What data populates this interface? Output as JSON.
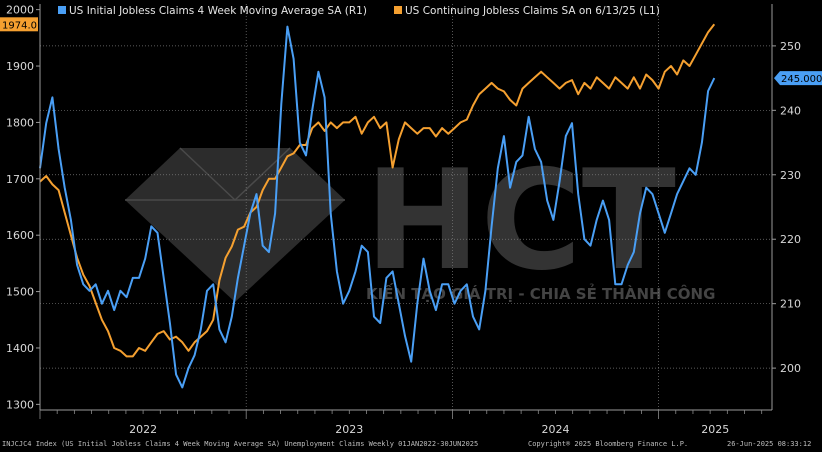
{
  "chart_data": {
    "type": "line",
    "legend": [
      {
        "label": "US Initial Jobless Claims 4 Week Moving Average SA  (R1)",
        "color": "#4a9ff5"
      },
      {
        "label": "US Continuing Jobless Claims SA  on 6/13/25 (L1)",
        "color": "#f5a030"
      }
    ],
    "left_axis": {
      "ticks": [
        "1300",
        "1400",
        "1500",
        "1600",
        "1700",
        "1800",
        "1900",
        "2000"
      ],
      "range": [
        1290,
        2010
      ]
    },
    "right_axis": {
      "ticks": [
        "200",
        "210",
        "220",
        "230",
        "240",
        "250"
      ],
      "range": [
        193.5,
        256.5
      ]
    },
    "x_labels": [
      "2022",
      "2023",
      "2024",
      "2025"
    ],
    "x_range": [
      2022.0,
      2025.55
    ],
    "last_value_left": "1974.0",
    "last_value_right": "245.000",
    "watermark": {
      "brand": "HCT",
      "tagline": "KIẾN TẠO GIÁ TRỊ - CHIA SẺ THÀNH CÔNG"
    },
    "series": [
      {
        "name": "US Initial Jobless Claims 4 Week Moving Average SA",
        "axis": "right",
        "color": "#4a9ff5",
        "points": [
          [
            2022.0,
            231
          ],
          [
            2022.03,
            238
          ],
          [
            2022.06,
            242
          ],
          [
            2022.09,
            234
          ],
          [
            2022.12,
            228
          ],
          [
            2022.15,
            223
          ],
          [
            2022.18,
            216
          ],
          [
            2022.21,
            213
          ],
          [
            2022.24,
            212
          ],
          [
            2022.27,
            213
          ],
          [
            2022.3,
            210
          ],
          [
            2022.33,
            212
          ],
          [
            2022.36,
            209
          ],
          [
            2022.39,
            212
          ],
          [
            2022.42,
            211
          ],
          [
            2022.45,
            214
          ],
          [
            2022.48,
            214
          ],
          [
            2022.51,
            217
          ],
          [
            2022.54,
            222
          ],
          [
            2022.57,
            221
          ],
          [
            2022.6,
            214
          ],
          [
            2022.63,
            207
          ],
          [
            2022.66,
            199
          ],
          [
            2022.69,
            197
          ],
          [
            2022.72,
            200
          ],
          [
            2022.75,
            202
          ],
          [
            2022.78,
            206
          ],
          [
            2022.81,
            212
          ],
          [
            2022.84,
            213
          ],
          [
            2022.87,
            206
          ],
          [
            2022.9,
            204
          ],
          [
            2022.93,
            208
          ],
          [
            2022.96,
            214
          ],
          [
            2022.99,
            219
          ],
          [
            2023.02,
            224
          ],
          [
            2023.05,
            227
          ],
          [
            2023.08,
            219
          ],
          [
            2023.11,
            218
          ],
          [
            2023.14,
            224
          ],
          [
            2023.17,
            241
          ],
          [
            2023.2,
            253
          ],
          [
            2023.23,
            248
          ],
          [
            2023.26,
            235
          ],
          [
            2023.29,
            233
          ],
          [
            2023.32,
            240
          ],
          [
            2023.35,
            246
          ],
          [
            2023.38,
            242
          ],
          [
            2023.41,
            224
          ],
          [
            2023.44,
            215
          ],
          [
            2023.47,
            210
          ],
          [
            2023.5,
            212
          ],
          [
            2023.53,
            215
          ],
          [
            2023.56,
            219
          ],
          [
            2023.59,
            218
          ],
          [
            2023.62,
            208
          ],
          [
            2023.65,
            207
          ],
          [
            2023.68,
            214
          ],
          [
            2023.71,
            215
          ],
          [
            2023.74,
            210
          ],
          [
            2023.77,
            205
          ],
          [
            2023.8,
            201
          ],
          [
            2023.83,
            210
          ],
          [
            2023.86,
            217
          ],
          [
            2023.89,
            212
          ],
          [
            2023.92,
            209
          ],
          [
            2023.95,
            213
          ],
          [
            2023.98,
            213
          ],
          [
            2024.01,
            210
          ],
          [
            2024.04,
            212
          ],
          [
            2024.07,
            213
          ],
          [
            2024.1,
            208
          ],
          [
            2024.13,
            206
          ],
          [
            2024.16,
            212
          ],
          [
            2024.19,
            222
          ],
          [
            2024.22,
            231
          ],
          [
            2024.25,
            236
          ],
          [
            2024.28,
            228
          ],
          [
            2024.31,
            232
          ],
          [
            2024.34,
            233
          ],
          [
            2024.37,
            239
          ],
          [
            2024.4,
            234
          ],
          [
            2024.43,
            232
          ],
          [
            2024.46,
            226
          ],
          [
            2024.49,
            223
          ],
          [
            2024.52,
            229
          ],
          [
            2024.55,
            236
          ],
          [
            2024.58,
            238
          ],
          [
            2024.61,
            227
          ],
          [
            2024.64,
            220
          ],
          [
            2024.67,
            219
          ],
          [
            2024.7,
            223
          ],
          [
            2024.73,
            226
          ],
          [
            2024.76,
            223
          ],
          [
            2024.79,
            213
          ],
          [
            2024.82,
            213
          ],
          [
            2024.85,
            216
          ],
          [
            2024.88,
            218
          ],
          [
            2024.91,
            224
          ],
          [
            2024.94,
            228
          ],
          [
            2024.97,
            227
          ],
          [
            2025.0,
            224
          ],
          [
            2025.03,
            221
          ],
          [
            2025.06,
            224
          ],
          [
            2025.09,
            227
          ],
          [
            2025.12,
            229
          ],
          [
            2025.15,
            231
          ],
          [
            2025.18,
            230
          ],
          [
            2025.21,
            235
          ],
          [
            2025.24,
            243
          ],
          [
            2025.27,
            245
          ]
        ]
      },
      {
        "name": "US Continuing Jobless Claims SA",
        "axis": "left",
        "color": "#f5a030",
        "points": [
          [
            2022.0,
            1695
          ],
          [
            2022.03,
            1705
          ],
          [
            2022.06,
            1690
          ],
          [
            2022.09,
            1680
          ],
          [
            2022.12,
            1640
          ],
          [
            2022.15,
            1600
          ],
          [
            2022.18,
            1560
          ],
          [
            2022.21,
            1530
          ],
          [
            2022.24,
            1510
          ],
          [
            2022.27,
            1480
          ],
          [
            2022.3,
            1450
          ],
          [
            2022.33,
            1430
          ],
          [
            2022.36,
            1400
          ],
          [
            2022.39,
            1395
          ],
          [
            2022.42,
            1385
          ],
          [
            2022.45,
            1385
          ],
          [
            2022.48,
            1400
          ],
          [
            2022.51,
            1395
          ],
          [
            2022.54,
            1410
          ],
          [
            2022.57,
            1425
          ],
          [
            2022.6,
            1430
          ],
          [
            2022.63,
            1415
          ],
          [
            2022.66,
            1420
          ],
          [
            2022.69,
            1410
          ],
          [
            2022.72,
            1395
          ],
          [
            2022.75,
            1410
          ],
          [
            2022.78,
            1420
          ],
          [
            2022.81,
            1430
          ],
          [
            2022.84,
            1450
          ],
          [
            2022.87,
            1520
          ],
          [
            2022.9,
            1560
          ],
          [
            2022.93,
            1580
          ],
          [
            2022.96,
            1610
          ],
          [
            2022.99,
            1615
          ],
          [
            2023.02,
            1640
          ],
          [
            2023.05,
            1650
          ],
          [
            2023.08,
            1680
          ],
          [
            2023.11,
            1700
          ],
          [
            2023.14,
            1700
          ],
          [
            2023.17,
            1720
          ],
          [
            2023.2,
            1740
          ],
          [
            2023.23,
            1745
          ],
          [
            2023.26,
            1760
          ],
          [
            2023.29,
            1760
          ],
          [
            2023.32,
            1790
          ],
          [
            2023.35,
            1800
          ],
          [
            2023.38,
            1785
          ],
          [
            2023.41,
            1800
          ],
          [
            2023.44,
            1790
          ],
          [
            2023.47,
            1800
          ],
          [
            2023.5,
            1800
          ],
          [
            2023.53,
            1810
          ],
          [
            2023.56,
            1780
          ],
          [
            2023.59,
            1800
          ],
          [
            2023.62,
            1810
          ],
          [
            2023.65,
            1790
          ],
          [
            2023.68,
            1800
          ],
          [
            2023.71,
            1720
          ],
          [
            2023.74,
            1770
          ],
          [
            2023.77,
            1800
          ],
          [
            2023.8,
            1790
          ],
          [
            2023.83,
            1780
          ],
          [
            2023.86,
            1790
          ],
          [
            2023.89,
            1790
          ],
          [
            2023.92,
            1775
          ],
          [
            2023.95,
            1790
          ],
          [
            2023.98,
            1780
          ],
          [
            2024.01,
            1790
          ],
          [
            2024.04,
            1800
          ],
          [
            2024.07,
            1805
          ],
          [
            2024.1,
            1830
          ],
          [
            2024.13,
            1850
          ],
          [
            2024.16,
            1860
          ],
          [
            2024.19,
            1870
          ],
          [
            2024.22,
            1860
          ],
          [
            2024.25,
            1855
          ],
          [
            2024.28,
            1840
          ],
          [
            2024.31,
            1830
          ],
          [
            2024.34,
            1860
          ],
          [
            2024.37,
            1870
          ],
          [
            2024.4,
            1880
          ],
          [
            2024.43,
            1890
          ],
          [
            2024.46,
            1880
          ],
          [
            2024.49,
            1870
          ],
          [
            2024.52,
            1860
          ],
          [
            2024.55,
            1870
          ],
          [
            2024.58,
            1875
          ],
          [
            2024.61,
            1850
          ],
          [
            2024.64,
            1870
          ],
          [
            2024.67,
            1860
          ],
          [
            2024.7,
            1880
          ],
          [
            2024.73,
            1870
          ],
          [
            2024.76,
            1860
          ],
          [
            2024.79,
            1880
          ],
          [
            2024.82,
            1870
          ],
          [
            2024.85,
            1860
          ],
          [
            2024.88,
            1880
          ],
          [
            2024.91,
            1860
          ],
          [
            2024.94,
            1885
          ],
          [
            2024.97,
            1875
          ],
          [
            2025.0,
            1860
          ],
          [
            2025.03,
            1890
          ],
          [
            2025.06,
            1900
          ],
          [
            2025.09,
            1885
          ],
          [
            2025.12,
            1910
          ],
          [
            2025.15,
            1900
          ],
          [
            2025.18,
            1920
          ],
          [
            2025.21,
            1940
          ],
          [
            2025.24,
            1960
          ],
          [
            2025.27,
            1974
          ]
        ]
      }
    ]
  },
  "footer": {
    "source": "INJCJC4 Index (US Initial Jobless Claims 4 Week Moving Average SA) Unemployment Claims  Weekly 01JAN2022-30JUN2025",
    "copyright": "Copyright® 2025 Bloomberg Finance L.P.",
    "timestamp": "26-Jun-2025 08:33:12"
  }
}
